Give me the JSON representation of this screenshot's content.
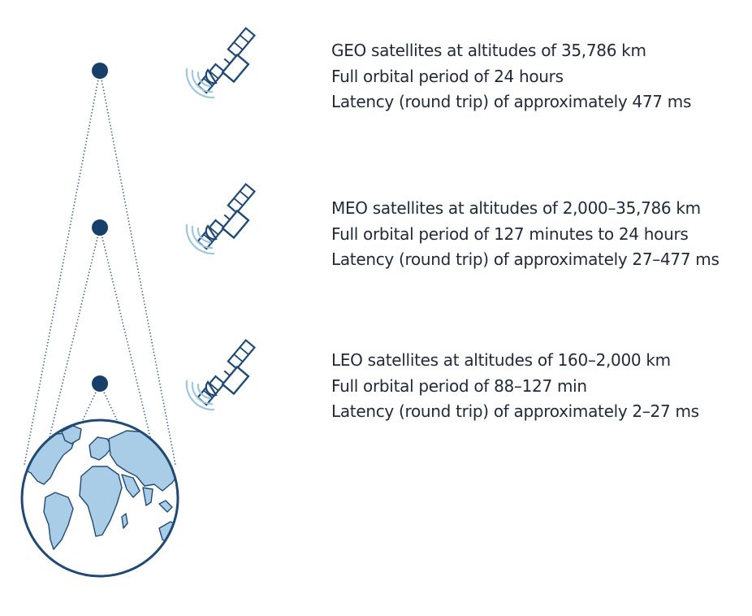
{
  "colors": {
    "navy": "#1f4a74",
    "dot": "#16406a",
    "land": "#a9cde6",
    "signal": "#9cc7e0",
    "text": "#1f2a38"
  },
  "icons": {
    "satellite": "satellite-icon",
    "earth": "earth-globe-icon",
    "signal": "signal-waves-icon"
  },
  "orbits": [
    {
      "id": "geo",
      "lines": [
        "GEO satellites at altitudes of 35,786 km",
        "Full orbital period of 24 hours",
        "Latency (round trip) of approximately 477 ms"
      ]
    },
    {
      "id": "meo",
      "lines": [
        "MEO satellites at altitudes of 2,000–35,786 km",
        "Full orbital period of 127 minutes to 24 hours",
        "Latency (round trip) of approximately 27–477 ms"
      ]
    },
    {
      "id": "leo",
      "lines": [
        "LEO satellites at altitudes of 160–2,000 km",
        "Full orbital period of 88–127 min",
        "Latency (round trip) of approximately 2–27 ms"
      ]
    }
  ]
}
